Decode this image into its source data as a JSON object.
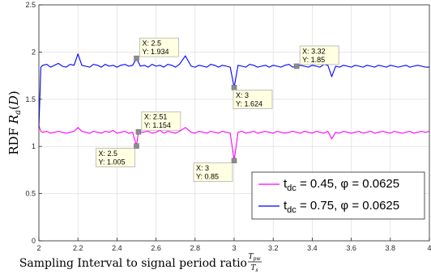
{
  "chart_data": {
    "type": "line",
    "xlabel": "Sampling Interval to signal period ratio",
    "xlabel_fraction": {
      "numerator": "T_pw",
      "denominator": "T_s"
    },
    "ylabel": "RDF  R_a(D)",
    "xlim": [
      2,
      4
    ],
    "ylim": [
      0,
      2.5
    ],
    "xticks": [
      "2",
      "2.2",
      "2.4",
      "2.6",
      "2.8",
      "3",
      "3.2",
      "3.4",
      "3.6",
      "3.8",
      "4"
    ],
    "yticks": [
      "0",
      "0.5",
      "1",
      "1.5",
      "2",
      "2.5"
    ],
    "grid": true,
    "legend_position": "bottom-right",
    "series": [
      {
        "name": "t_dc = 0.45, φ = 0.0625",
        "legend_main": "t",
        "legend_sub": "dc",
        "legend_rest": " = 0.45, φ = 0.0625",
        "color": "#ff00ff",
        "x": [
          2.0,
          2.01,
          2.02,
          2.04,
          2.06,
          2.08,
          2.1,
          2.12,
          2.14,
          2.16,
          2.18,
          2.2,
          2.22,
          2.24,
          2.26,
          2.28,
          2.3,
          2.32,
          2.34,
          2.36,
          2.38,
          2.4,
          2.42,
          2.44,
          2.46,
          2.48,
          2.5,
          2.51,
          2.53,
          2.56,
          2.58,
          2.6,
          2.62,
          2.64,
          2.66,
          2.68,
          2.7,
          2.72,
          2.75,
          2.78,
          2.8,
          2.82,
          2.84,
          2.86,
          2.88,
          2.9,
          2.92,
          2.94,
          2.96,
          2.98,
          3.0,
          3.02,
          3.04,
          3.06,
          3.08,
          3.1,
          3.12,
          3.14,
          3.16,
          3.18,
          3.2,
          3.22,
          3.24,
          3.26,
          3.28,
          3.3,
          3.32,
          3.34,
          3.36,
          3.38,
          3.4,
          3.42,
          3.44,
          3.46,
          3.48,
          3.5,
          3.52,
          3.54,
          3.56,
          3.58,
          3.6,
          3.62,
          3.64,
          3.66,
          3.68,
          3.7,
          3.72,
          3.74,
          3.76,
          3.78,
          3.8,
          3.82,
          3.84,
          3.86,
          3.88,
          3.9,
          3.92,
          3.94,
          3.96,
          3.98,
          4.0
        ],
        "y": [
          1.22,
          1.16,
          1.15,
          1.16,
          1.14,
          1.15,
          1.16,
          1.15,
          1.14,
          1.15,
          1.16,
          1.2,
          1.16,
          1.15,
          1.14,
          1.16,
          1.15,
          1.14,
          1.16,
          1.15,
          1.17,
          1.14,
          1.15,
          1.16,
          1.14,
          1.15,
          1.005,
          1.154,
          1.15,
          1.16,
          1.14,
          1.15,
          1.17,
          1.14,
          1.16,
          1.15,
          1.14,
          1.16,
          1.2,
          1.15,
          1.14,
          1.16,
          1.15,
          1.14,
          1.16,
          1.15,
          1.14,
          1.16,
          1.15,
          1.14,
          0.85,
          1.15,
          1.16,
          1.14,
          1.15,
          1.16,
          1.14,
          1.15,
          1.16,
          1.15,
          1.14,
          1.16,
          1.15,
          1.14,
          1.15,
          1.16,
          1.15,
          1.14,
          1.16,
          1.15,
          1.14,
          1.16,
          1.15,
          1.14,
          1.16,
          1.08,
          1.15,
          1.14,
          1.16,
          1.15,
          1.14,
          1.15,
          1.16,
          1.14,
          1.15,
          1.16,
          1.14,
          1.15,
          1.16,
          1.15,
          1.14,
          1.16,
          1.15,
          1.14,
          1.15,
          1.16,
          1.14,
          1.15,
          1.16,
          1.15,
          1.16
        ]
      },
      {
        "name": "t_dc = 0.75, φ = 0.0625",
        "legend_main": "t",
        "legend_sub": "dc",
        "legend_rest": " = 0.75, φ = 0.0625",
        "color": "#0000ff",
        "x": [
          2.0,
          2.01,
          2.02,
          2.04,
          2.06,
          2.08,
          2.1,
          2.12,
          2.14,
          2.16,
          2.18,
          2.2,
          2.22,
          2.24,
          2.26,
          2.28,
          2.3,
          2.32,
          2.34,
          2.36,
          2.38,
          2.4,
          2.42,
          2.44,
          2.46,
          2.48,
          2.5,
          2.52,
          2.54,
          2.56,
          2.58,
          2.6,
          2.62,
          2.64,
          2.66,
          2.68,
          2.7,
          2.72,
          2.75,
          2.78,
          2.8,
          2.82,
          2.84,
          2.86,
          2.88,
          2.9,
          2.92,
          2.94,
          2.96,
          2.98,
          3.0,
          3.02,
          3.04,
          3.06,
          3.08,
          3.1,
          3.12,
          3.14,
          3.16,
          3.18,
          3.2,
          3.22,
          3.24,
          3.26,
          3.28,
          3.3,
          3.32,
          3.34,
          3.36,
          3.38,
          3.4,
          3.42,
          3.44,
          3.46,
          3.48,
          3.5,
          3.52,
          3.54,
          3.56,
          3.58,
          3.6,
          3.62,
          3.64,
          3.66,
          3.68,
          3.7,
          3.72,
          3.74,
          3.76,
          3.78,
          3.8,
          3.82,
          3.84,
          3.86,
          3.88,
          3.9,
          3.92,
          3.94,
          3.96,
          3.98,
          4.0
        ],
        "y": [
          1.2,
          1.84,
          1.86,
          1.87,
          1.84,
          1.86,
          1.88,
          1.85,
          1.84,
          1.87,
          1.86,
          1.98,
          1.86,
          1.85,
          1.84,
          1.87,
          1.86,
          1.84,
          1.87,
          1.85,
          1.86,
          1.84,
          1.86,
          1.87,
          1.85,
          1.86,
          1.934,
          1.85,
          1.86,
          1.84,
          1.87,
          1.85,
          1.86,
          1.84,
          1.87,
          1.86,
          1.84,
          1.87,
          1.96,
          1.85,
          1.84,
          1.86,
          1.85,
          1.84,
          1.87,
          1.86,
          1.84,
          1.86,
          1.85,
          1.84,
          1.624,
          1.86,
          1.85,
          1.84,
          1.87,
          1.86,
          1.84,
          1.85,
          1.86,
          1.84,
          1.86,
          1.85,
          1.84,
          1.86,
          1.87,
          1.84,
          1.85,
          1.86,
          1.85,
          1.84,
          1.86,
          1.85,
          1.84,
          1.87,
          1.86,
          1.74,
          1.85,
          1.84,
          1.86,
          1.85,
          1.84,
          1.86,
          1.85,
          1.84,
          1.86,
          1.85,
          1.84,
          1.86,
          1.85,
          1.84,
          1.86,
          1.85,
          1.84,
          1.85,
          1.86,
          1.84,
          1.85,
          1.86,
          1.85,
          1.84,
          1.84
        ]
      }
    ],
    "datatips": [
      {
        "x": 2.5,
        "y": 1.934,
        "label_x": "X: 2.5",
        "label_y": "Y: 1.934",
        "side": "right-up"
      },
      {
        "x": 3.32,
        "y": 1.85,
        "label_x": "X: 3.32",
        "label_y": "Y: 1.85",
        "side": "right-up"
      },
      {
        "x": 3.0,
        "y": 1.624,
        "label_x": "X: 3",
        "label_y": "Y: 1.624",
        "side": "right-down"
      },
      {
        "x": 2.51,
        "y": 1.154,
        "label_x": "X: 2.51",
        "label_y": "Y: 1.154",
        "side": "right-up"
      },
      {
        "x": 2.5,
        "y": 1.005,
        "label_x": "X: 2.5",
        "label_y": "Y: 1.005",
        "side": "left-down"
      },
      {
        "x": 3.0,
        "y": 0.85,
        "label_x": "X: 3",
        "label_y": "Y: 0.85",
        "side": "left-down"
      }
    ]
  }
}
